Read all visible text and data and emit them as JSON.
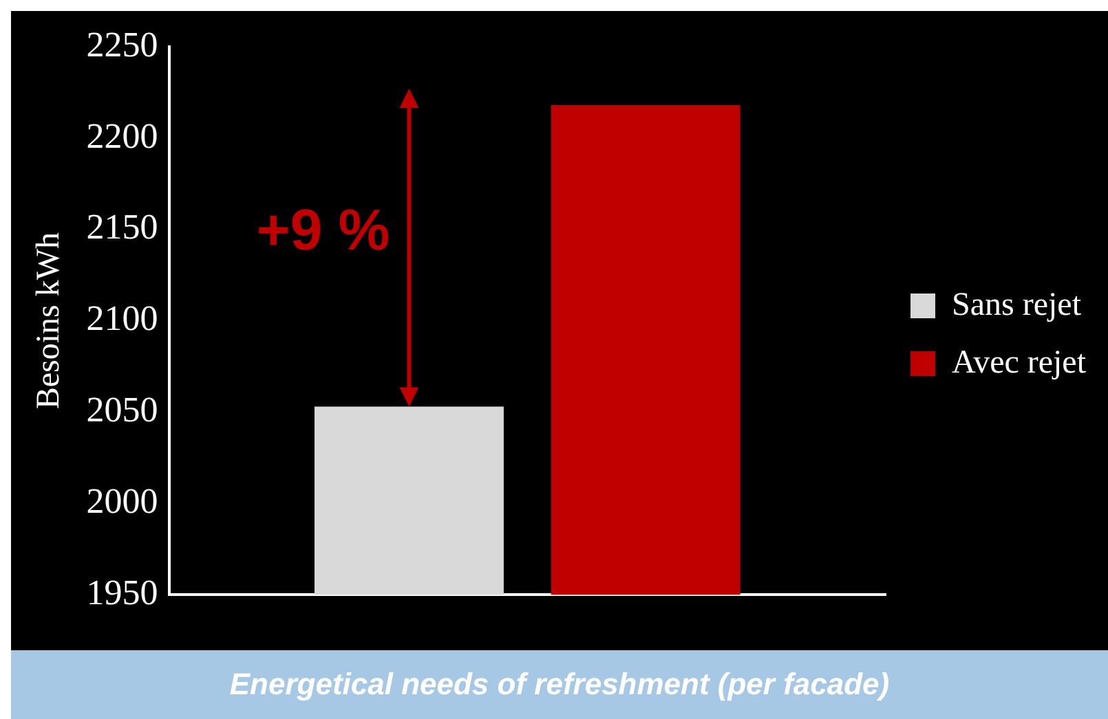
{
  "chart_data": {
    "type": "bar",
    "ylabel": "Besoins kWh",
    "categories": [
      null
    ],
    "series": [
      {
        "name": "Sans rejet",
        "color": "#d9d9d9",
        "values": [
          2053
        ]
      },
      {
        "name": "Avec rejet",
        "color": "#c00000",
        "values": [
          2218
        ]
      }
    ],
    "ylim": [
      1950,
      2250
    ],
    "yticks": [
      1950,
      2000,
      2050,
      2100,
      2150,
      2200,
      2250
    ],
    "grid": false,
    "legend": "right",
    "annotations": [
      "+9 %",
      "Energetical needs of refreshment (per facade)"
    ]
  }
}
